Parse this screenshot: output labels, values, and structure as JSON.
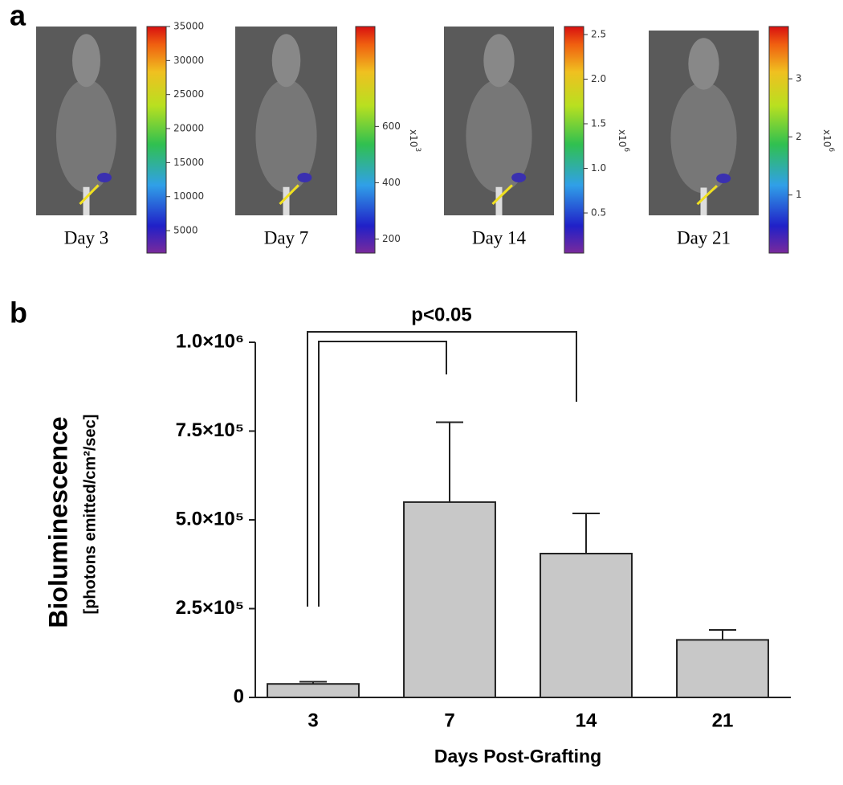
{
  "panel_labels": [
    "a",
    "b"
  ],
  "images": [
    {
      "caption": "Day 3",
      "colorbar": {
        "range": [
          1700,
          35000
        ],
        "ticks": [
          5000,
          10000,
          15000,
          20000,
          25000,
          30000,
          35000
        ]
      }
    },
    {
      "caption": "Day 7",
      "colorbar": {
        "range": [
          150,
          955
        ],
        "ticks": [
          200,
          400,
          600
        ],
        "multiplier_base": "x10",
        "multiplier_exp": "3"
      }
    },
    {
      "caption": "Day 14",
      "colorbar": {
        "range": [
          0.05,
          2.59
        ],
        "ticks": [
          0.5,
          {
            "value": 1,
            "label": "1.0"
          },
          1.5,
          {
            "value": 2,
            "label": "2.0"
          },
          2.5
        ],
        "multiplier_base": "x10",
        "multiplier_exp": "6"
      }
    },
    {
      "caption": "Day 21",
      "colorbar": {
        "range": [
          0,
          3.9
        ],
        "ticks": [
          1,
          2,
          3
        ],
        "multiplier_base": "x10",
        "multiplier_exp": "6"
      }
    }
  ],
  "chart_data": {
    "type": "bar",
    "categories": [
      "3",
      "7",
      "14",
      "21"
    ],
    "values": [
      38000,
      550000,
      405000,
      162000
    ],
    "errors": [
      6000,
      225000,
      113000,
      28000
    ],
    "color": "#c8c8c8",
    "ylim": [
      0,
      1000000
    ],
    "yticks": [
      0,
      {
        "value": 250000,
        "label": "2.5×10⁵"
      },
      {
        "value": 500000,
        "label": "5.0×10⁵"
      },
      {
        "value": 750000,
        "label": "7.5×10⁵"
      },
      {
        "value": 1000000,
        "label": "1.0×10⁶"
      }
    ],
    "y_label": "Bioluminescence",
    "y_sublabel": "[photons emitted/cm²/sec]",
    "x_label": "Days Post-Grafting",
    "annotation": "p<0.05"
  }
}
